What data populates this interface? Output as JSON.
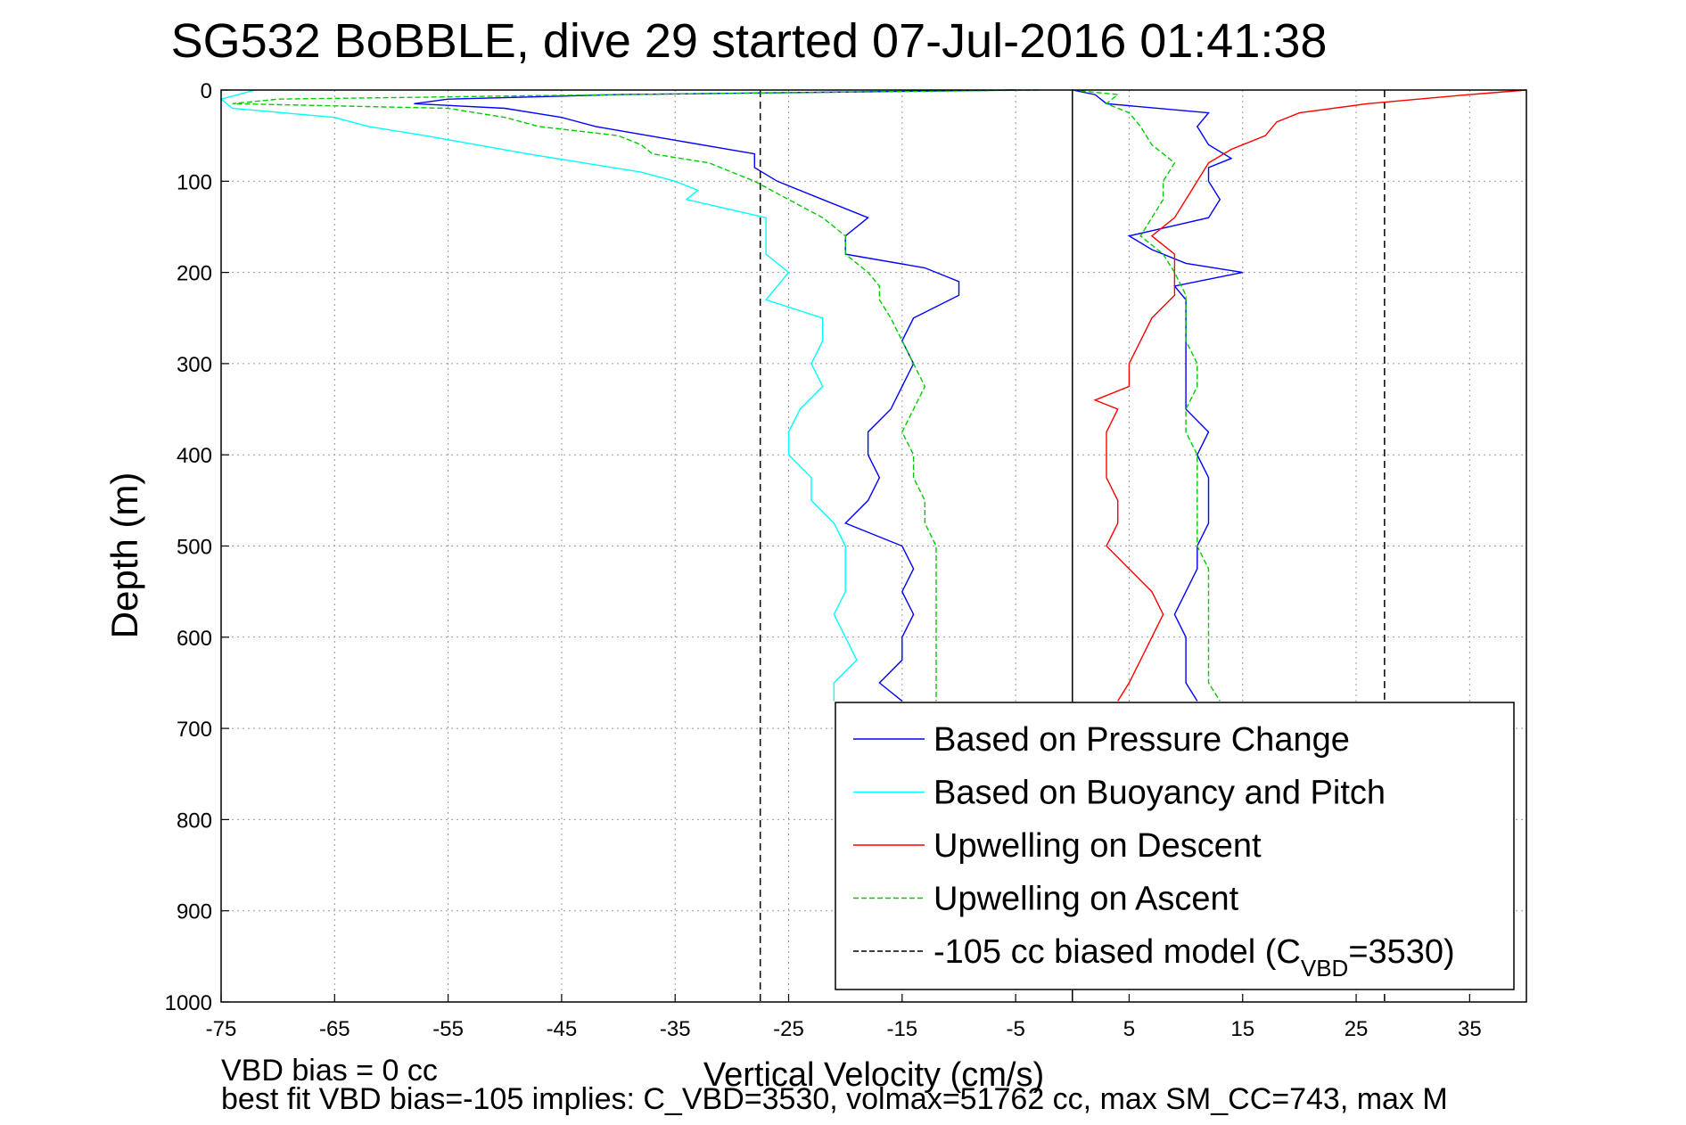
{
  "chart_data": {
    "type": "line",
    "title": "SG532 BoBBLE, dive 29 started 07-Jul-2016 01:41:38",
    "xlabel": "Vertical Velocity (cm/s)",
    "ylabel": "Depth (m)",
    "xlim": [
      -75,
      40
    ],
    "ylim": [
      0,
      1000
    ],
    "y_reversed": true,
    "grid": true,
    "legend_position": "bottom-right",
    "xticks": [
      -75,
      -65,
      -55,
      -45,
      -35,
      -25,
      -15,
      -5,
      5,
      15,
      25,
      35
    ],
    "yticks": [
      0,
      100,
      200,
      300,
      400,
      500,
      600,
      700,
      800,
      900,
      1000
    ],
    "reference_lines": [
      {
        "x": -27.5,
        "style": "dashed",
        "color": "#000000"
      },
      {
        "x": 0,
        "style": "solid",
        "color": "#000000"
      },
      {
        "x": 27.5,
        "style": "dashed",
        "color": "#000000"
      }
    ],
    "series": [
      {
        "name": "Based on Pressure Change",
        "color": "#0000ff",
        "dash": "solid",
        "profiles": [
          {
            "depth": [
              0,
              5,
              10,
              15,
              20,
              30,
              40,
              55,
              70,
              85,
              100,
              120,
              140,
              160,
              180,
              195,
              210,
              225,
              250,
              275,
              300,
              325,
              350,
              375,
              400,
              425,
              450,
              475,
              500,
              525,
              550,
              575,
              600,
              625,
              650,
              670
            ],
            "velocity": [
              -5,
              -40,
              -55,
              -58,
              -50,
              -45,
              -42,
              -35,
              -28,
              -28,
              -26,
              -22,
              -18,
              -20,
              -20,
              -13,
              -10,
              -10,
              -14,
              -15,
              -14,
              -15,
              -16,
              -18,
              -18,
              -17,
              -18,
              -20,
              -15,
              -14,
              -15,
              -14,
              -15,
              -15,
              -17,
              -15
            ]
          },
          {
            "depth": [
              0,
              5,
              15,
              25,
              40,
              60,
              75,
              85,
              100,
              120,
              140,
              160,
              175,
              190,
              200,
              215,
              230,
              250,
              275,
              300,
              325,
              350,
              375,
              400,
              425,
              450,
              475,
              500,
              525,
              550,
              575,
              600,
              625,
              650,
              670
            ],
            "velocity": [
              0,
              2,
              3,
              12,
              11,
              12,
              14,
              12,
              12,
              13,
              12,
              5,
              7,
              10,
              15,
              9,
              10,
              10,
              10,
              10,
              10,
              10,
              12,
              11,
              12,
              12,
              12,
              11,
              11,
              10,
              9,
              10,
              10,
              10,
              11
            ]
          }
        ]
      },
      {
        "name": "Based on Buoyancy and Pitch",
        "color": "#00ffff",
        "dash": "solid",
        "profiles": [
          {
            "depth": [
              0,
              10,
              20,
              30,
              40,
              50,
              70,
              90,
              100,
              110,
              120,
              140,
              160,
              180,
              200,
              215,
              230,
              250,
              275,
              300,
              325,
              350,
              375,
              400,
              425,
              450,
              475,
              500,
              525,
              550,
              575,
              600,
              625,
              650,
              670
            ],
            "velocity": [
              -72,
              -75,
              -74,
              -65,
              -62,
              -57,
              -48,
              -38,
              -35,
              -33,
              -34,
              -27,
              -27,
              -27,
              -25,
              -26,
              -27,
              -22,
              -22,
              -23,
              -22,
              -24,
              -25,
              -25,
              -23,
              -23,
              -21,
              -20,
              -20,
              -20,
              -21,
              -20,
              -19,
              -21,
              -21
            ]
          }
        ]
      },
      {
        "name": "Upwelling on Descent",
        "color": "#ff0000",
        "dash": "solid",
        "profiles": [
          {
            "depth": [
              0,
              5,
              15,
              25,
              35,
              50,
              65,
              80,
              100,
              120,
              140,
              160,
              180,
              200,
              225,
              250,
              275,
              300,
              325,
              340,
              350,
              375,
              400,
              425,
              450,
              475,
              500,
              525,
              550,
              575,
              600,
              625,
              650,
              670
            ],
            "velocity": [
              40,
              35,
              26,
              20,
              18,
              17,
              14,
              12,
              11,
              10,
              9,
              7,
              9,
              9,
              9,
              7,
              6,
              5,
              5,
              2,
              4,
              3,
              3,
              3,
              4,
              4,
              3,
              5,
              7,
              8,
              7,
              6,
              5,
              4
            ]
          }
        ]
      },
      {
        "name": "Upwelling on Ascent",
        "color": "#00cc00",
        "dash": "dashed",
        "profiles": [
          {
            "depth": [
              0,
              5,
              10,
              15,
              20,
              30,
              40,
              50,
              60,
              70,
              80,
              100,
              120,
              140,
              160,
              180,
              200,
              215,
              230,
              250,
              275,
              300,
              325,
              350,
              375,
              400,
              425,
              450,
              475,
              500,
              525,
              550,
              575,
              600,
              625,
              650,
              670
            ],
            "velocity": [
              -3,
              -40,
              -70,
              -74,
              -55,
              -50,
              -47,
              -40,
              -38,
              -37,
              -32,
              -28,
              -25,
              -22,
              -20,
              -20,
              -18,
              -17,
              -17,
              -16,
              -15,
              -14,
              -13,
              -14,
              -15,
              -14,
              -14,
              -13,
              -13,
              -12,
              -12,
              -12,
              -12,
              -12,
              -12,
              -12,
              -12
            ]
          },
          {
            "depth": [
              0,
              5,
              15,
              25,
              40,
              60,
              80,
              100,
              120,
              140,
              160,
              180,
              200,
              225,
              250,
              275,
              300,
              325,
              350,
              375,
              400,
              425,
              450,
              475,
              500,
              525,
              550,
              575,
              600,
              625,
              650,
              670
            ],
            "velocity": [
              0,
              4,
              3,
              5,
              6,
              7,
              9,
              8,
              8,
              7,
              6,
              8,
              9,
              10,
              10,
              10,
              11,
              11,
              10,
              10,
              11,
              11,
              11,
              11,
              11,
              12,
              12,
              12,
              12,
              12,
              12,
              13
            ]
          }
        ]
      },
      {
        "name": "-105 cc biased model (C",
        "name_sub": "VBD",
        "name_suffix": "=3530)",
        "color": "#000000",
        "dash": "dashed",
        "profiles": []
      }
    ],
    "annotations": {
      "vbd_bias": "VBD bias = 0 cc",
      "best_fit": "best fit VBD bias=-105 implies: C_VBD=3530, volmax=51762 cc, max SM_CC=743, max M"
    }
  }
}
